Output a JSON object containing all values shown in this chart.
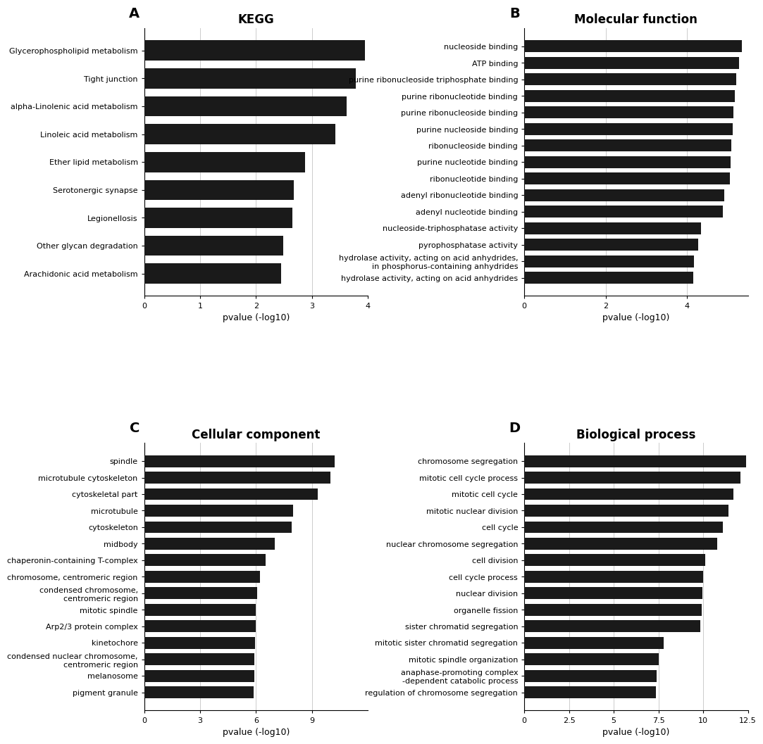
{
  "panel_A": {
    "title": "KEGG",
    "xlabel": "pvalue (-log10)",
    "categories": [
      "Glycerophospholipid metabolism",
      "Tight junction",
      "alpha-Linolenic acid metabolism",
      "Linoleic acid metabolism",
      "Ether lipid metabolism",
      "Serotonergic synapse",
      "Legionellosis",
      "Other glycan degradation",
      "Arachidonic acid metabolism"
    ],
    "values": [
      3.95,
      3.78,
      3.62,
      3.42,
      2.88,
      2.68,
      2.65,
      2.48,
      2.45
    ],
    "xlim": [
      0,
      4
    ],
    "xticks": [
      0,
      1,
      2,
      3,
      4
    ],
    "bar_color": "#1a1a1a"
  },
  "panel_B": {
    "title": "Molecular function",
    "xlabel": "pvalue (-log10)",
    "categories": [
      "nucleoside binding",
      "ATP binding",
      "purine ribonucleoside triphosphate binding",
      "purine ribonucleotide binding",
      "purine ribonucleoside binding",
      "purine nucleoside binding",
      "ribonucleoside binding",
      "purine nucleotide binding",
      "ribonucleotide binding",
      "adenyl ribonucleotide binding",
      "adenyl nucleotide binding",
      "nucleoside-triphosphatase activity",
      "pyrophosphatase activity",
      "hydrolase activity, acting on acid anhydrides,\nin phosphorus-containing anhydrides",
      "hydrolase activity, acting on acid anhydrides"
    ],
    "values": [
      5.35,
      5.28,
      5.22,
      5.18,
      5.15,
      5.12,
      5.1,
      5.08,
      5.05,
      4.92,
      4.88,
      4.35,
      4.28,
      4.18,
      4.15
    ],
    "xlim": [
      0,
      5.5
    ],
    "xticks": [
      0,
      2,
      4
    ],
    "bar_color": "#1a1a1a"
  },
  "panel_C": {
    "title": "Cellular component",
    "xlabel": "pvalue (-log10)",
    "categories": [
      "spindle",
      "microtubule cytoskeleton",
      "cytoskeletal part",
      "microtubule",
      "cytoskeleton",
      "midbody",
      "chaperonin-containing T-complex",
      "chromosome, centromeric region",
      "condensed chromosome,\ncentromeric region",
      "mitotic spindle",
      "Arp2/3 protein complex",
      "kinetochore",
      "condensed nuclear chromosome,\ncentromeric region",
      "melanosome",
      "pigment granule"
    ],
    "values": [
      10.2,
      10.0,
      9.3,
      8.0,
      7.9,
      7.0,
      6.5,
      6.2,
      6.05,
      6.0,
      5.98,
      5.95,
      5.92,
      5.9,
      5.88
    ],
    "xlim": [
      0,
      12
    ],
    "xticks": [
      0,
      3,
      6,
      9
    ],
    "bar_color": "#1a1a1a"
  },
  "panel_D": {
    "title": "Biological process",
    "xlabel": "pvalue (-log10)",
    "categories": [
      "chromosome segregation",
      "mitotic cell cycle process",
      "mitotic cell cycle",
      "mitotic nuclear division",
      "cell cycle",
      "nuclear chromosome segregation",
      "cell division",
      "cell cycle process",
      "nuclear division",
      "organelle fission",
      "sister chromatid segregation",
      "mitotic sister chromatid segregation",
      "mitotic spindle organization",
      "anaphase-promoting complex\n-dependent catabolic process",
      "regulation of chromosome segregation"
    ],
    "values": [
      12.4,
      12.1,
      11.7,
      11.4,
      11.1,
      10.8,
      10.1,
      10.0,
      9.95,
      9.9,
      9.85,
      7.8,
      7.5,
      7.4,
      7.35
    ],
    "xlim": [
      0,
      12.5
    ],
    "xticks": [
      0.0,
      2.5,
      5.0,
      7.5,
      10.0,
      12.5
    ],
    "bar_color": "#1a1a1a"
  },
  "background_color": "#ffffff",
  "title_fontsize": 12,
  "label_fontsize": 8,
  "axis_label_fontsize": 9,
  "panel_label_fontsize": 14
}
